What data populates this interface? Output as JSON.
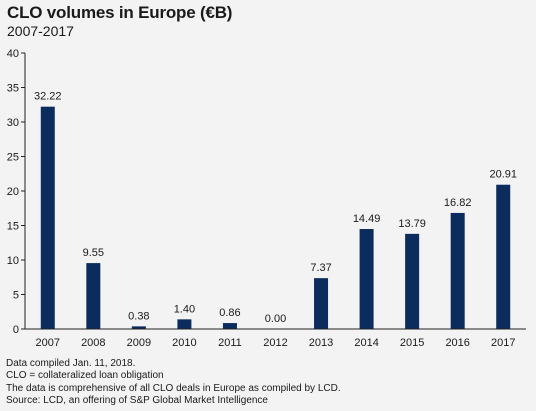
{
  "header": {
    "title": "CLO volumes in Europe (€B)",
    "subtitle": "2007-2017"
  },
  "notes": [
    "Data compiled Jan. 11, 2018.",
    "CLO = collateralized loan obligation",
    "The data is comprehensive of all CLO deals in Europe as compiled by LCD.",
    "Source: LCD, an offering of S&P Global Market Intelligence"
  ],
  "colors": {
    "bar": "#0b2c5c",
    "background": "#f3f3f4",
    "axis": "#222222"
  },
  "chart_data": {
    "type": "bar",
    "title": "CLO volumes in Europe (€B)",
    "subtitle": "2007-2017",
    "categories": [
      "2007",
      "2008",
      "2009",
      "2010",
      "2011",
      "2012",
      "2013",
      "2014",
      "2015",
      "2016",
      "2017"
    ],
    "values": [
      32.22,
      9.55,
      0.38,
      1.4,
      0.86,
      0.0,
      7.37,
      14.49,
      13.79,
      16.82,
      20.91
    ],
    "value_labels": [
      "32.22",
      "9.55",
      "0.38",
      "1.40",
      "0.86",
      "0.00",
      "7.37",
      "14.49",
      "13.79",
      "16.82",
      "20.91"
    ],
    "yticks": [
      "0",
      "5",
      "10",
      "15",
      "20",
      "25",
      "30",
      "35",
      "40"
    ],
    "ylim": [
      0,
      40
    ],
    "xlabel": "",
    "ylabel": "",
    "grid": false,
    "legend": "none"
  }
}
